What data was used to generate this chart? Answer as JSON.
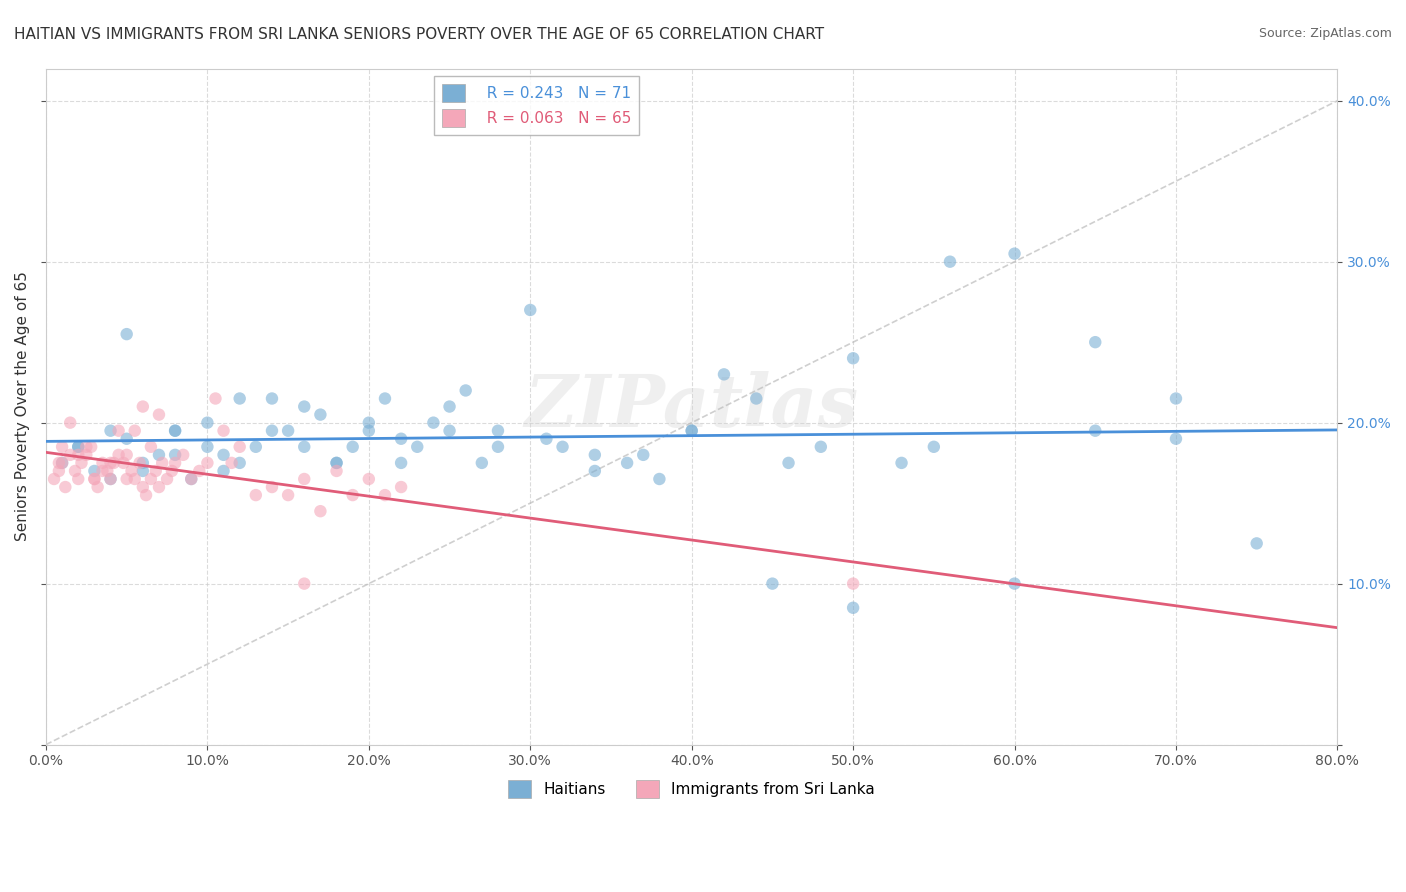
{
  "title": "HAITIAN VS IMMIGRANTS FROM SRI LANKA SENIORS POVERTY OVER THE AGE OF 65 CORRELATION CHART",
  "source": "Source: ZipAtlas.com",
  "ylabel": "Seniors Poverty Over the Age of 65",
  "xlabel": "",
  "watermark": "ZIPatlas",
  "xmin": 0.0,
  "xmax": 0.8,
  "ymin": 0.0,
  "ymax": 0.42,
  "yticks": [
    0.0,
    0.1,
    0.2,
    0.3,
    0.4
  ],
  "xticks": [
    0.0,
    0.1,
    0.2,
    0.3,
    0.4,
    0.5,
    0.6,
    0.7,
    0.8
  ],
  "group1_name": "Haitians",
  "group1_R": "0.243",
  "group1_N": "71",
  "group1_color": "#7bafd4",
  "group1_line_color": "#4a90d9",
  "group2_name": "Immigrants from Sri Lanka",
  "group2_R": "0.063",
  "group2_N": "65",
  "group2_color": "#f4a7b9",
  "group2_line_color": "#e05c78",
  "group1_x": [
    0.02,
    0.03,
    0.04,
    0.05,
    0.06,
    0.07,
    0.08,
    0.09,
    0.1,
    0.11,
    0.12,
    0.13,
    0.14,
    0.15,
    0.16,
    0.17,
    0.18,
    0.19,
    0.2,
    0.21,
    0.22,
    0.23,
    0.24,
    0.25,
    0.26,
    0.27,
    0.28,
    0.3,
    0.32,
    0.34,
    0.36,
    0.38,
    0.4,
    0.42,
    0.44,
    0.46,
    0.48,
    0.5,
    0.53,
    0.56,
    0.6,
    0.65,
    0.7,
    0.75,
    0.01,
    0.02,
    0.04,
    0.06,
    0.08,
    0.1,
    0.12,
    0.14,
    0.16,
    0.18,
    0.2,
    0.22,
    0.25,
    0.28,
    0.31,
    0.34,
    0.37,
    0.4,
    0.45,
    0.5,
    0.55,
    0.6,
    0.65,
    0.7,
    0.05,
    0.08,
    0.11
  ],
  "group1_y": [
    0.185,
    0.17,
    0.165,
    0.19,
    0.175,
    0.18,
    0.195,
    0.165,
    0.2,
    0.18,
    0.175,
    0.185,
    0.215,
    0.195,
    0.21,
    0.205,
    0.175,
    0.185,
    0.195,
    0.215,
    0.19,
    0.185,
    0.2,
    0.21,
    0.22,
    0.175,
    0.195,
    0.27,
    0.185,
    0.18,
    0.175,
    0.165,
    0.195,
    0.23,
    0.215,
    0.175,
    0.185,
    0.085,
    0.175,
    0.3,
    0.305,
    0.25,
    0.19,
    0.125,
    0.175,
    0.185,
    0.195,
    0.17,
    0.18,
    0.185,
    0.215,
    0.195,
    0.185,
    0.175,
    0.2,
    0.175,
    0.195,
    0.185,
    0.19,
    0.17,
    0.18,
    0.195,
    0.1,
    0.24,
    0.185,
    0.1,
    0.195,
    0.215,
    0.255,
    0.195,
    0.17
  ],
  "group2_x": [
    0.005,
    0.008,
    0.01,
    0.012,
    0.015,
    0.018,
    0.02,
    0.022,
    0.025,
    0.028,
    0.03,
    0.032,
    0.035,
    0.038,
    0.04,
    0.042,
    0.045,
    0.048,
    0.05,
    0.053,
    0.055,
    0.058,
    0.06,
    0.062,
    0.065,
    0.068,
    0.07,
    0.072,
    0.075,
    0.078,
    0.08,
    0.085,
    0.09,
    0.095,
    0.1,
    0.105,
    0.11,
    0.115,
    0.12,
    0.13,
    0.14,
    0.15,
    0.16,
    0.17,
    0.18,
    0.19,
    0.2,
    0.21,
    0.22,
    0.008,
    0.01,
    0.015,
    0.02,
    0.025,
    0.03,
    0.035,
    0.04,
    0.045,
    0.05,
    0.055,
    0.06,
    0.065,
    0.07,
    0.5,
    0.16
  ],
  "group2_y": [
    0.165,
    0.17,
    0.175,
    0.16,
    0.18,
    0.17,
    0.165,
    0.175,
    0.18,
    0.185,
    0.165,
    0.16,
    0.175,
    0.17,
    0.165,
    0.175,
    0.18,
    0.175,
    0.165,
    0.17,
    0.165,
    0.175,
    0.16,
    0.155,
    0.165,
    0.17,
    0.16,
    0.175,
    0.165,
    0.17,
    0.175,
    0.18,
    0.165,
    0.17,
    0.175,
    0.215,
    0.195,
    0.175,
    0.185,
    0.155,
    0.16,
    0.155,
    0.165,
    0.145,
    0.17,
    0.155,
    0.165,
    0.155,
    0.16,
    0.175,
    0.185,
    0.2,
    0.18,
    0.185,
    0.165,
    0.17,
    0.175,
    0.195,
    0.18,
    0.195,
    0.21,
    0.185,
    0.205,
    0.1,
    0.1
  ],
  "background_color": "#ffffff",
  "grid_color": "#cccccc",
  "title_fontsize": 11,
  "axis_label_fontsize": 11,
  "tick_fontsize": 10,
  "legend_fontsize": 11,
  "source_fontsize": 9
}
